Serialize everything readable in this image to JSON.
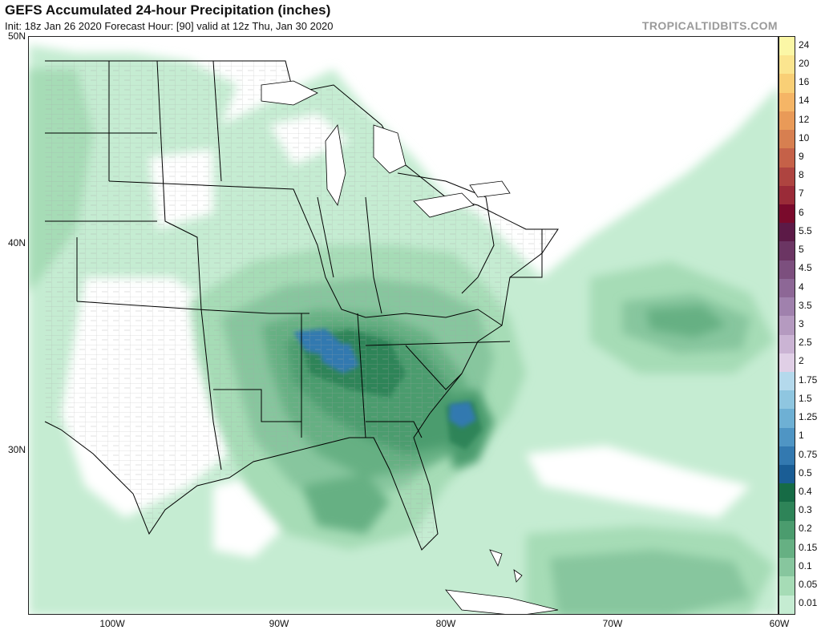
{
  "header": {
    "title": "GEFS Accumulated 24-hour Precipitation (inches)",
    "subtitle": "Init: 18z Jan 26 2020   Forecast Hour: [90]   valid at 12z Thu, Jan 30 2020",
    "brand": "TROPICALTIDBITS.COM"
  },
  "axes": {
    "lat_labels": [
      "50N",
      "40N",
      "30N"
    ],
    "lon_labels": [
      "100W",
      "90W",
      "80W",
      "70W",
      "60W"
    ]
  },
  "colorbar": {
    "labels": [
      "24",
      "20",
      "16",
      "14",
      "12",
      "10",
      "9",
      "8",
      "7",
      "6",
      "5.5",
      "5",
      "4.5",
      "4",
      "3.5",
      "3",
      "2.5",
      "2",
      "1.75",
      "1.5",
      "1.25",
      "1",
      "0.75",
      "0.5",
      "0.4",
      "0.3",
      "0.2",
      "0.15",
      "0.1",
      "0.05",
      "0.01"
    ],
    "colors": [
      "#fbf7a6",
      "#fbe58f",
      "#f9cf76",
      "#f5b566",
      "#e99a58",
      "#d77f50",
      "#c56148",
      "#ae4440",
      "#9a2b38",
      "#7a0a2c",
      "#5c1a47",
      "#6b3563",
      "#7c4f7e",
      "#8d6796",
      "#a081ad",
      "#b59ac0",
      "#cbb4d4",
      "#e0cfe6",
      "#b4d9ec",
      "#8fc6e0",
      "#6eb0d4",
      "#4f95c4",
      "#3379b0",
      "#1a5d95",
      "#166b45",
      "#2e8458",
      "#4b9c6e",
      "#66b083",
      "#87c69e",
      "#a6dcb6",
      "#c5ecd2"
    ]
  },
  "map_data": {
    "region": "Eastern United States and western Atlantic",
    "extent": {
      "lon_min": -105,
      "lon_max": -60,
      "lat_min": 22,
      "lat_max": 50
    }
  },
  "colors": {
    "land": "#ffffff",
    "county_lines": "#9a9a9a",
    "state_lines": "#000000"
  }
}
